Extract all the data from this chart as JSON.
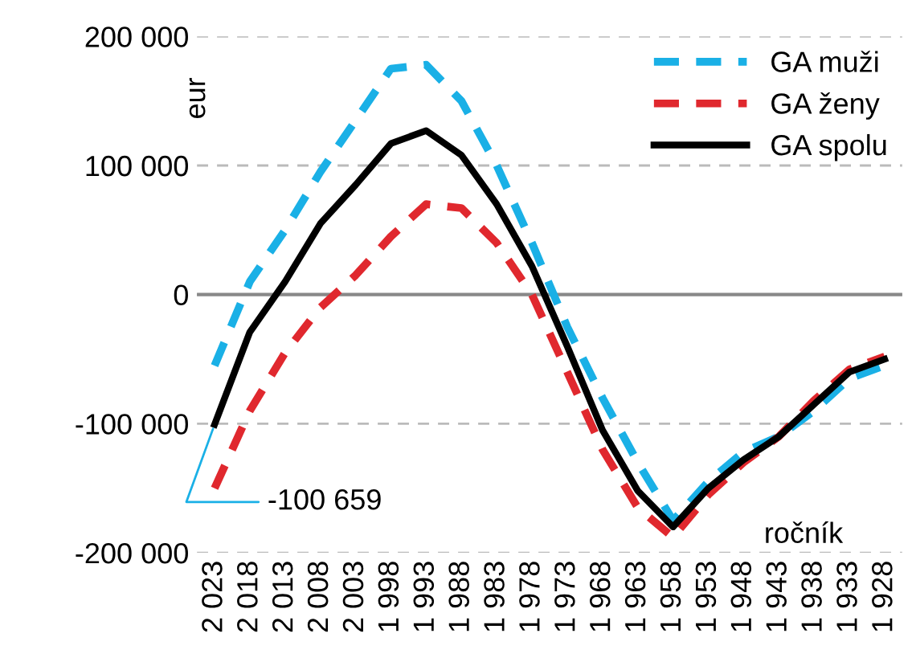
{
  "chart_data": {
    "type": "line",
    "ylabel": "eur",
    "xlabel": "ročník",
    "categories": [
      "2 023",
      "2 018",
      "2 013",
      "2 008",
      "2 003",
      "1 998",
      "1 993",
      "1 988",
      "1 983",
      "1 978",
      "1 973",
      "1 968",
      "1 963",
      "1 958",
      "1 953",
      "1 948",
      "1 943",
      "1 938",
      "1 933",
      "1 928"
    ],
    "series": [
      {
        "name": "GA muži",
        "color": "#1ab0e6",
        "line_style": "dashed",
        "values": [
          -55000,
          10000,
          50000,
          95000,
          135000,
          175000,
          178000,
          150000,
          100000,
          40000,
          -25000,
          -80000,
          -130000,
          -175000,
          -145000,
          -122000,
          -110000,
          -90000,
          -65000,
          -55000
        ]
      },
      {
        "name": "GA ženy",
        "color": "#e0282e",
        "line_style": "dashed",
        "values": [
          -150000,
          -90000,
          -45000,
          -10000,
          15000,
          45000,
          70000,
          67000,
          40000,
          0,
          -60000,
          -120000,
          -165000,
          -188000,
          -155000,
          -130000,
          -110000,
          -82000,
          -58000,
          -48000
        ]
      },
      {
        "name": "GA spolu",
        "color": "#000000",
        "line_style": "solid",
        "values": [
          -100659,
          -29000,
          10000,
          55000,
          85000,
          117000,
          127000,
          108000,
          70000,
          22000,
          -40000,
          -105000,
          -152000,
          -180000,
          -150000,
          -128000,
          -110000,
          -85000,
          -60000,
          -50000
        ]
      }
    ],
    "ylim": [
      -200000,
      200000
    ],
    "yticks": [
      {
        "value": -200000,
        "label": "-200 000"
      },
      {
        "value": -100000,
        "label": "-100 000"
      },
      0,
      {
        "value": 100000,
        "label": "100 000"
      },
      {
        "value": 200000,
        "label": "200 000"
      }
    ],
    "grid": "y",
    "ref_lines": [
      {
        "axis": "y",
        "value": 0,
        "color": "#888888"
      }
    ],
    "annotations": [
      {
        "text": "-100 659",
        "x": "2 023",
        "y": -100659
      }
    ],
    "legend": "top right",
    "marker": "none"
  }
}
